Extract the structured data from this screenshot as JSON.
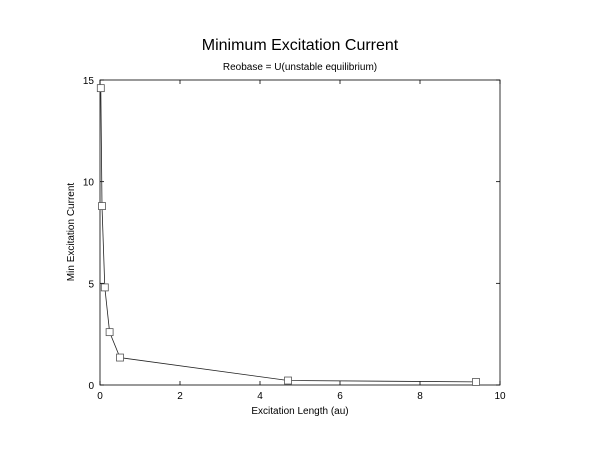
{
  "chart_data": {
    "type": "line",
    "title": "Minimum Excitation Current",
    "subtitle": "Reobase = U(unstable equilibrium)",
    "xlabel": "Excitation Length (au)",
    "ylabel": "Min Excitation Current",
    "xlim": [
      0,
      10
    ],
    "ylim": [
      0,
      15
    ],
    "x_ticks": [
      0,
      2,
      4,
      6,
      8,
      10
    ],
    "y_ticks": [
      0,
      5,
      10,
      15
    ],
    "grid": false,
    "marker": "square",
    "series": [
      {
        "x": [
          0.02,
          0.05,
          0.12,
          0.24,
          0.5,
          4.7,
          9.4
        ],
        "y": [
          14.6,
          8.8,
          4.8,
          2.6,
          1.35,
          0.22,
          0.15
        ]
      }
    ]
  }
}
